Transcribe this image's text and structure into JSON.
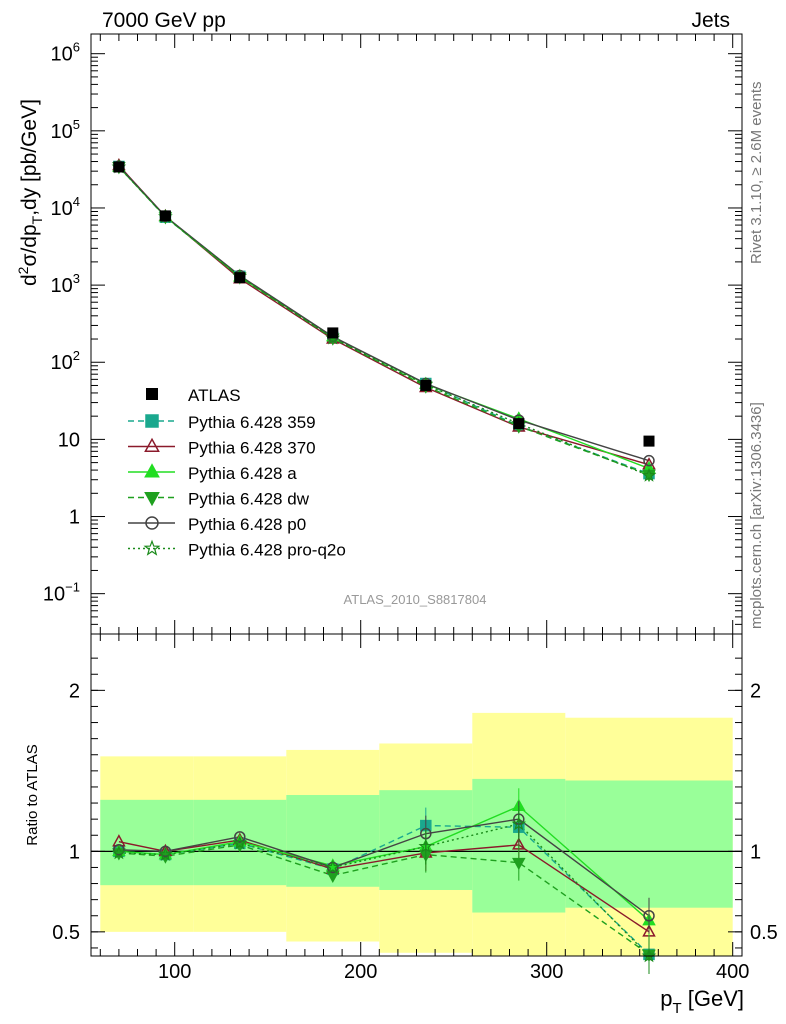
{
  "header": {
    "left": "7000 GeV pp",
    "right": "Jets"
  },
  "side_labels": {
    "rivet": "Rivet 3.1.10, ≥ 2.6M events",
    "mcplots": "mcplots.cern.ch [arXiv:1306.3436]"
  },
  "analysis_id": "ATLAS_2010_S8817804",
  "y_title": {
    "main_d": "d",
    "sup2": "2",
    "main_rest": "σ/dp",
    "subT": "T",
    "main_tail": ",dy [pb/GeV]"
  },
  "x_title": {
    "p": "p",
    "subT": "T",
    "rest": " [GeV]"
  },
  "ratio_ylabel": "Ratio to ATLAS",
  "chart_data": [
    {
      "type": "line",
      "panel": "main",
      "yscale": "log",
      "xlim": [
        55,
        405
      ],
      "ylim": [
        0.03,
        1800000
      ],
      "yticks": [
        {
          "v": 0.1,
          "base": "10",
          "exp": "−1"
        },
        {
          "v": 1,
          "base": "1",
          "exp": ""
        },
        {
          "v": 10,
          "base": "10",
          "exp": ""
        },
        {
          "v": 100,
          "base": "10",
          "exp": "2"
        },
        {
          "v": 1000,
          "base": "10",
          "exp": "3"
        },
        {
          "v": 10000,
          "base": "10",
          "exp": "4"
        },
        {
          "v": 100000,
          "base": "10",
          "exp": "5"
        },
        {
          "v": 1000000,
          "base": "10",
          "exp": "6"
        }
      ],
      "xticks": [
        100,
        200,
        300,
        400
      ],
      "x": [
        70,
        95,
        135,
        185,
        235,
        285,
        355
      ],
      "data": {
        "name": "ATLAS",
        "values": [
          34000,
          7900,
          1250,
          240,
          50,
          16,
          9.5
        ],
        "bin_edges": [
          60,
          80,
          110,
          160,
          210,
          260,
          310,
          400
        ]
      },
      "series": [
        {
          "name": "Pythia 6.428 359",
          "color": "#1aa88e",
          "dash": "6,4",
          "marker": "square",
          "values": [
            34500,
            7600,
            1300,
            210,
            53,
            15,
            3.6
          ]
        },
        {
          "name": "Pythia 6.428 370",
          "color": "#8b1a2b",
          "dash": "",
          "marker": "triangle-open",
          "values": [
            35500,
            7800,
            1210,
            200,
            47,
            14.5,
            4.7
          ]
        },
        {
          "name": "Pythia 6.428 a",
          "color": "#22dd22",
          "dash": "",
          "marker": "triangle",
          "values": [
            34000,
            7700,
            1280,
            215,
            52,
            18.5,
            4.2
          ]
        },
        {
          "name": "Pythia 6.428 dw",
          "color": "#1fa01f",
          "dash": "6,4",
          "marker": "triangle-down",
          "values": [
            34200,
            7650,
            1270,
            205,
            49,
            14.8,
            3.5
          ]
        },
        {
          "name": "Pythia 6.428 p0",
          "color": "#444444",
          "dash": "",
          "marker": "circle-open",
          "values": [
            34800,
            7800,
            1330,
            215,
            53,
            17.8,
            5.3
          ]
        },
        {
          "name": "Pythia 6.428 pro-q2o",
          "color": "#1a8a1a",
          "dash": "2,3",
          "marker": "star",
          "values": [
            33900,
            7700,
            1300,
            205,
            51,
            16,
            3.4
          ]
        }
      ]
    },
    {
      "type": "line",
      "panel": "ratio",
      "ylim": [
        0.35,
        2.35
      ],
      "yticks": [
        0.5,
        1,
        2
      ],
      "xticks": [
        100,
        200,
        300,
        400
      ],
      "x": [
        70,
        95,
        135,
        185,
        235,
        285,
        355
      ],
      "bands": {
        "bin_edges": [
          60,
          110,
          160,
          210,
          260,
          310,
          400
        ],
        "yellow": [
          [
            0.5,
            1.59
          ],
          [
            0.5,
            1.59
          ],
          [
            0.44,
            1.63
          ],
          [
            0.37,
            1.67
          ],
          [
            0.35,
            1.86
          ],
          [
            0.35,
            1.83
          ]
        ],
        "green": [
          [
            0.79,
            1.32
          ],
          [
            0.79,
            1.32
          ],
          [
            0.78,
            1.35
          ],
          [
            0.76,
            1.38
          ],
          [
            0.62,
            1.45
          ],
          [
            0.65,
            1.44
          ]
        ]
      },
      "series": [
        {
          "name": "Pythia 6.428 359",
          "color": "#1aa88e",
          "dash": "6,4",
          "marker": "square",
          "values": [
            1.0,
            0.98,
            1.05,
            0.89,
            1.16,
            1.15,
            0.36
          ]
        },
        {
          "name": "Pythia 6.428 370",
          "color": "#8b1a2b",
          "dash": "",
          "marker": "triangle-open",
          "values": [
            1.06,
            1.0,
            1.07,
            0.89,
            0.99,
            1.04,
            0.5
          ]
        },
        {
          "name": "Pythia 6.428 a",
          "color": "#22dd22",
          "dash": "",
          "marker": "triangle",
          "values": [
            1.0,
            0.98,
            1.06,
            0.91,
            1.03,
            1.28,
            0.57
          ]
        },
        {
          "name": "Pythia 6.428 dw",
          "color": "#1fa01f",
          "dash": "6,4",
          "marker": "triangle-down",
          "values": [
            0.99,
            0.97,
            1.04,
            0.85,
            0.98,
            0.93,
            0.36
          ]
        },
        {
          "name": "Pythia 6.428 p0",
          "color": "#444444",
          "dash": "",
          "marker": "circle-open",
          "values": [
            1.01,
            1.0,
            1.09,
            0.9,
            1.11,
            1.2,
            0.6
          ]
        },
        {
          "name": "Pythia 6.428 pro-q2o",
          "color": "#1a8a1a",
          "dash": "2,3",
          "marker": "star",
          "values": [
            0.99,
            0.98,
            1.05,
            0.9,
            1.03,
            1.17,
            0.35
          ]
        }
      ]
    }
  ]
}
